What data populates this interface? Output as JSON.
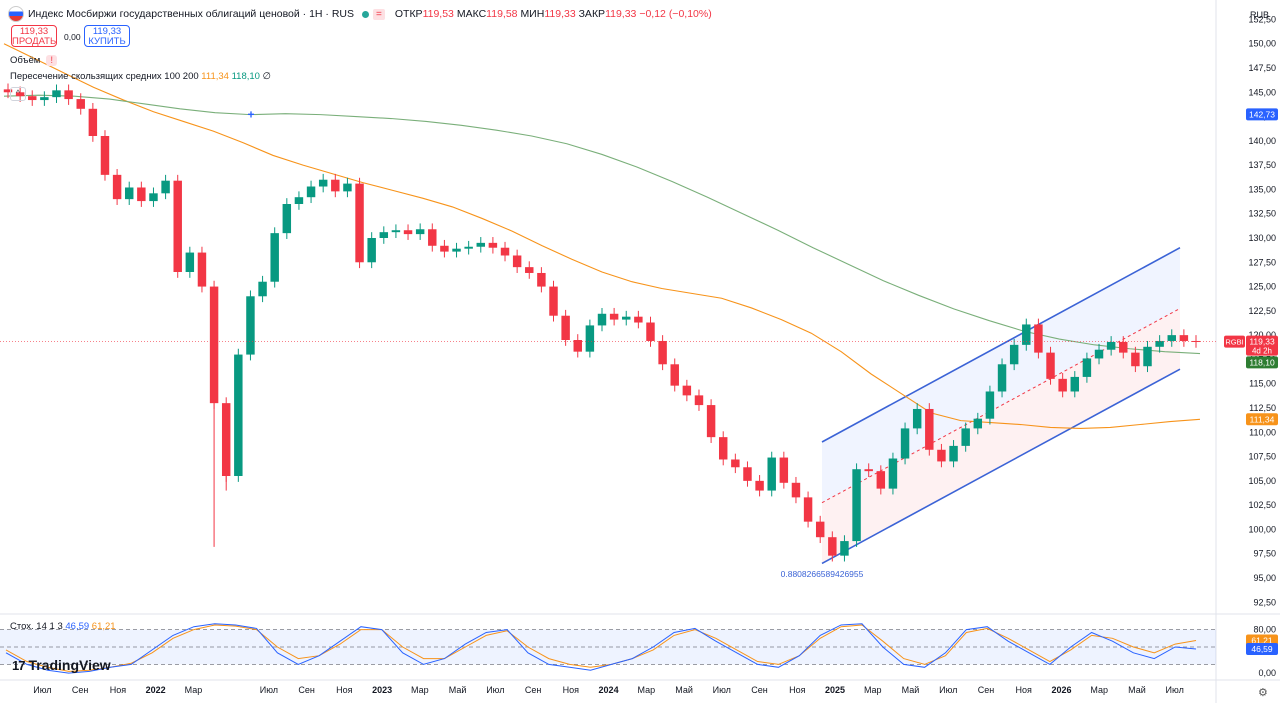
{
  "header": {
    "title": "Индекс Мосбиржи государственных облигаций ценовой · 1H · RUS",
    "equals_badge": "=",
    "open_label": "ОТКР",
    "open": "119,53",
    "high_label": "МАКС",
    "high": "119,58",
    "low_label": "МИН",
    "low": "119,33",
    "close_label": "ЗАКР",
    "close": "119,33",
    "change": "−0,12 (−0,10%)"
  },
  "trade": {
    "sell_price": "119,33",
    "sell_label": "ПРОДАТЬ",
    "spread": "0,00",
    "buy_price": "119,33",
    "buy_label": "КУПИТЬ"
  },
  "indicators": {
    "volume_label": "Объём",
    "warn": "!",
    "ma_label": "Пересечение скользящих средних 100 200",
    "ma_fast_value": "111,34",
    "ma_slow_value": "118,10",
    "ma_symbol": "∅",
    "collapse_icon": "^",
    "stoch_label": "Стох. 14 1 3",
    "stoch_k": "46,59",
    "stoch_d": "61,21"
  },
  "axis": {
    "currency": "RUB",
    "price_badge_label": "RGBI",
    "price_badge_value": "119,33",
    "price_badge_time": "4d 2h",
    "badge_142": "142,73",
    "badge_118": "118,10",
    "badge_111": "111,34",
    "stoch_badge_d": "61,21",
    "stoch_badge_k": "46,59"
  },
  "branding": {
    "logo": "TradingView",
    "logo_mark": "17"
  },
  "channel_label": "0.8808266589426955",
  "colors": {
    "up": "#089981",
    "down": "#f23645",
    "ma_fast": "#f7931a",
    "ma_slow": "#7aaf7a",
    "channel": "#3b63d6",
    "stoch_k": "#2962ff",
    "stoch_d": "#f7931a"
  },
  "chart_data": {
    "type": "candlestick",
    "title": "Индекс Мосбиржи государственных облигаций ценовой · 1H · RUS",
    "y_ticks": [
      "152,50",
      "150,00",
      "147,50",
      "145,00",
      "142,50",
      "140,00",
      "137,50",
      "135,00",
      "132,50",
      "130,00",
      "127,50",
      "125,00",
      "122,50",
      "120,00",
      "117,50",
      "115,00",
      "112,50",
      "110,00",
      "107,50",
      "105,00",
      "102,50",
      "100,00",
      "97,50",
      "95,00",
      "92,50"
    ],
    "ylim": [
      91.5,
      154.5
    ],
    "x_ticks": [
      "Июл",
      "Сен",
      "Ноя",
      "2022",
      "Мар",
      "Июл",
      "Сен",
      "Ноя",
      "2023",
      "Мар",
      "Май",
      "Июл",
      "Сен",
      "Ноя",
      "2024",
      "Мар",
      "Май",
      "Июл",
      "Сен",
      "Ноя",
      "2025",
      "Мар",
      "Май",
      "Июл",
      "Сен",
      "Ноя",
      "2026",
      "Мар",
      "Май",
      "Июл"
    ],
    "x_tick_values": [
      0.5,
      2.5,
      4.5,
      6.5,
      8.5,
      12.5,
      14.5,
      16.5,
      18.5,
      20.5,
      22.5,
      24.5,
      26.5,
      28.5,
      30.5,
      32.5,
      34.5,
      36.5,
      38.5,
      40.5,
      42.5,
      44.5,
      46.5,
      48.5,
      50.5,
      52.5,
      54.5,
      56.5,
      58.5,
      60.5
    ],
    "closes": [
      145,
      144.6,
      144.2,
      144.5,
      145.2,
      144.3,
      143.3,
      140.5,
      136.5,
      134.0,
      135.2,
      133.8,
      134.6,
      135.9,
      126.5,
      128.5,
      125.0,
      113.0,
      105.5,
      118.0,
      124.0,
      125.5,
      130.5,
      133.5,
      134.2,
      135.3,
      136.0,
      134.8,
      135.6,
      127.5,
      130.0,
      130.6,
      130.8,
      130.4,
      130.9,
      129.2,
      128.6,
      128.9,
      129.1,
      129.5,
      129.0,
      128.2,
      127.0,
      126.4,
      125.0,
      122.0,
      119.5,
      118.3,
      121.0,
      122.2,
      121.6,
      121.9,
      121.3,
      119.4,
      117.0,
      114.8,
      113.8,
      112.8,
      109.5,
      107.2,
      106.4,
      105.0,
      104.0,
      107.4,
      104.8,
      103.3,
      100.8,
      99.2,
      97.3,
      98.8,
      106.2,
      106.0,
      104.2,
      107.3,
      110.4,
      112.4,
      108.2,
      107.0,
      108.6,
      110.4,
      111.4,
      114.2,
      117.0,
      119.0,
      121.1,
      118.2,
      115.5,
      114.2,
      115.7,
      117.6,
      118.5,
      119.3,
      118.2,
      116.8,
      118.8,
      119.4,
      120.0,
      119.4,
      119.3
    ],
    "ma_100": [
      150.0,
      148.5,
      147.0,
      145.5,
      144.2,
      143.0,
      142.0,
      141.0,
      139.8,
      138.5,
      137.5,
      136.6,
      135.7,
      134.9,
      134.1,
      133.2,
      132.0,
      130.7,
      129.2,
      127.8,
      126.5,
      125.5,
      124.8,
      124.3,
      123.8,
      122.8,
      121.6,
      120.2,
      118.3,
      116.0,
      114.0,
      112.0,
      111.2,
      111.0,
      110.8,
      110.5,
      110.4,
      110.5,
      110.8,
      111.1,
      111.34
    ],
    "ma_200": [
      144.6,
      144.7,
      144.6,
      144.3,
      143.8,
      143.3,
      142.9,
      142.7,
      142.8,
      142.7,
      142.5,
      142.3,
      142.0,
      141.6,
      141.1,
      140.5,
      139.7,
      138.6,
      137.3,
      135.8,
      134.2,
      132.5,
      130.8,
      129.0,
      127.3,
      125.6,
      124.1,
      122.7,
      121.5,
      120.4,
      119.6,
      119.0,
      118.6,
      118.3,
      118.1
    ],
    "channel": {
      "upper_start": 109.0,
      "upper_end": 129.0,
      "lower_start": 96.5,
      "lower_end": 116.5
    },
    "stochastic": {
      "k": [
        40,
        20,
        10,
        5,
        8,
        15,
        20,
        45,
        70,
        85,
        90,
        88,
        82,
        40,
        20,
        35,
        60,
        85,
        80,
        40,
        20,
        30,
        55,
        75,
        80,
        40,
        20,
        15,
        10,
        20,
        30,
        50,
        75,
        82,
        60,
        40,
        20,
        15,
        35,
        70,
        88,
        90,
        50,
        20,
        15,
        40,
        80,
        85,
        60,
        40,
        20,
        50,
        75,
        60,
        40,
        30,
        50,
        46.59
      ],
      "d": [
        45,
        25,
        15,
        8,
        10,
        15,
        22,
        40,
        65,
        80,
        88,
        86,
        80,
        50,
        30,
        35,
        55,
        80,
        80,
        50,
        30,
        30,
        50,
        70,
        78,
        50,
        30,
        20,
        15,
        20,
        30,
        45,
        70,
        80,
        65,
        45,
        25,
        20,
        35,
        65,
        85,
        88,
        60,
        30,
        20,
        35,
        75,
        82,
        65,
        45,
        25,
        45,
        70,
        65,
        50,
        40,
        55,
        61.21
      ],
      "upper_band": 80,
      "lower_band": 20
    }
  }
}
